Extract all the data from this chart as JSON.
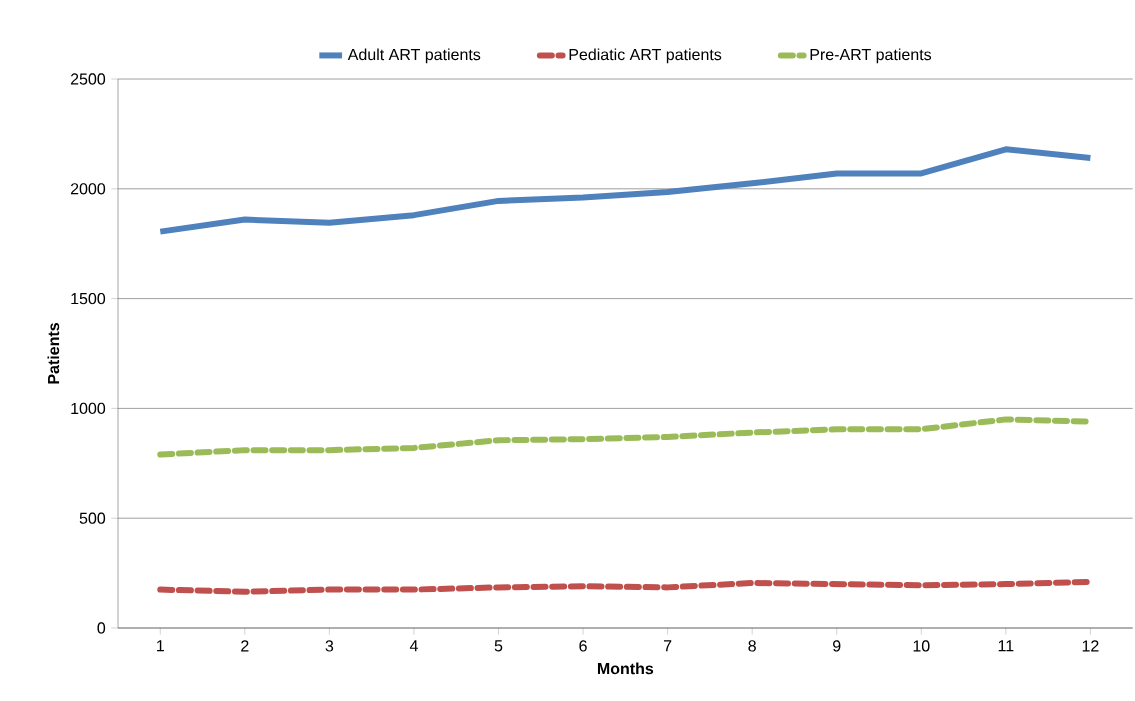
{
  "chart_data": {
    "type": "line",
    "xlabel": "Months",
    "ylabel": "Patients",
    "categories": [
      "1",
      "2",
      "3",
      "4",
      "5",
      "6",
      "7",
      "8",
      "9",
      "10",
      "11",
      "12"
    ],
    "series": [
      {
        "name": "Adult ART patients",
        "color": "#4f81bd",
        "line_style": "solid",
        "values": [
          1805,
          1860,
          1845,
          1880,
          1945,
          1960,
          1985,
          2025,
          2070,
          2070,
          2180,
          2140
        ]
      },
      {
        "name": "Pediatic ART patients",
        "color": "#c0504d",
        "line_style": "dashed",
        "values": [
          175,
          165,
          175,
          175,
          185,
          190,
          185,
          205,
          200,
          195,
          200,
          210
        ]
      },
      {
        "name": "Pre-ART patients",
        "color": "#9bbb59",
        "line_style": "dashed",
        "values": [
          790,
          810,
          810,
          820,
          855,
          860,
          870,
          890,
          905,
          905,
          950,
          940
        ]
      }
    ],
    "ylim": [
      0,
      2500
    ],
    "yticks": [
      0,
      500,
      1000,
      1500,
      2000,
      2500
    ],
    "grid": "y",
    "legend": "top",
    "marker": "none"
  }
}
